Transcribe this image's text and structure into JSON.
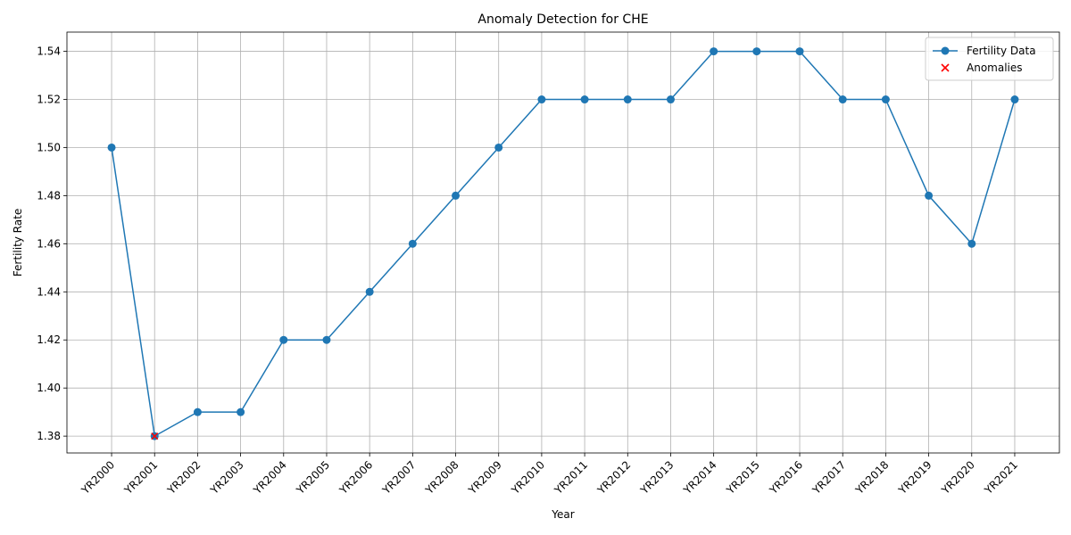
{
  "chart_data": {
    "type": "line",
    "title": "Anomaly Detection for CHE",
    "xlabel": "Year",
    "ylabel": "Fertility Rate",
    "categories": [
      "YR2000",
      "YR2001",
      "YR2002",
      "YR2003",
      "YR2004",
      "YR2005",
      "YR2006",
      "YR2007",
      "YR2008",
      "YR2009",
      "YR2010",
      "YR2011",
      "YR2012",
      "YR2013",
      "YR2014",
      "YR2015",
      "YR2016",
      "YR2017",
      "YR2018",
      "YR2019",
      "YR2020",
      "YR2021"
    ],
    "series": [
      {
        "name": "Fertility Data",
        "color": "#1f77b4",
        "values": [
          1.5,
          1.38,
          1.39,
          1.39,
          1.42,
          1.42,
          1.44,
          1.46,
          1.48,
          1.5,
          1.52,
          1.52,
          1.52,
          1.52,
          1.54,
          1.54,
          1.54,
          1.52,
          1.52,
          1.48,
          1.46,
          1.52
        ]
      }
    ],
    "anomalies": {
      "name": "Anomalies",
      "color": "#ff0000",
      "categories": [
        "YR2001"
      ],
      "values": [
        1.38
      ]
    },
    "ylim": [
      1.373,
      1.548
    ],
    "yticks": [
      1.38,
      1.4,
      1.42,
      1.44,
      1.46,
      1.48,
      1.5,
      1.52,
      1.54
    ],
    "grid": true,
    "legend_position": "top-right"
  }
}
